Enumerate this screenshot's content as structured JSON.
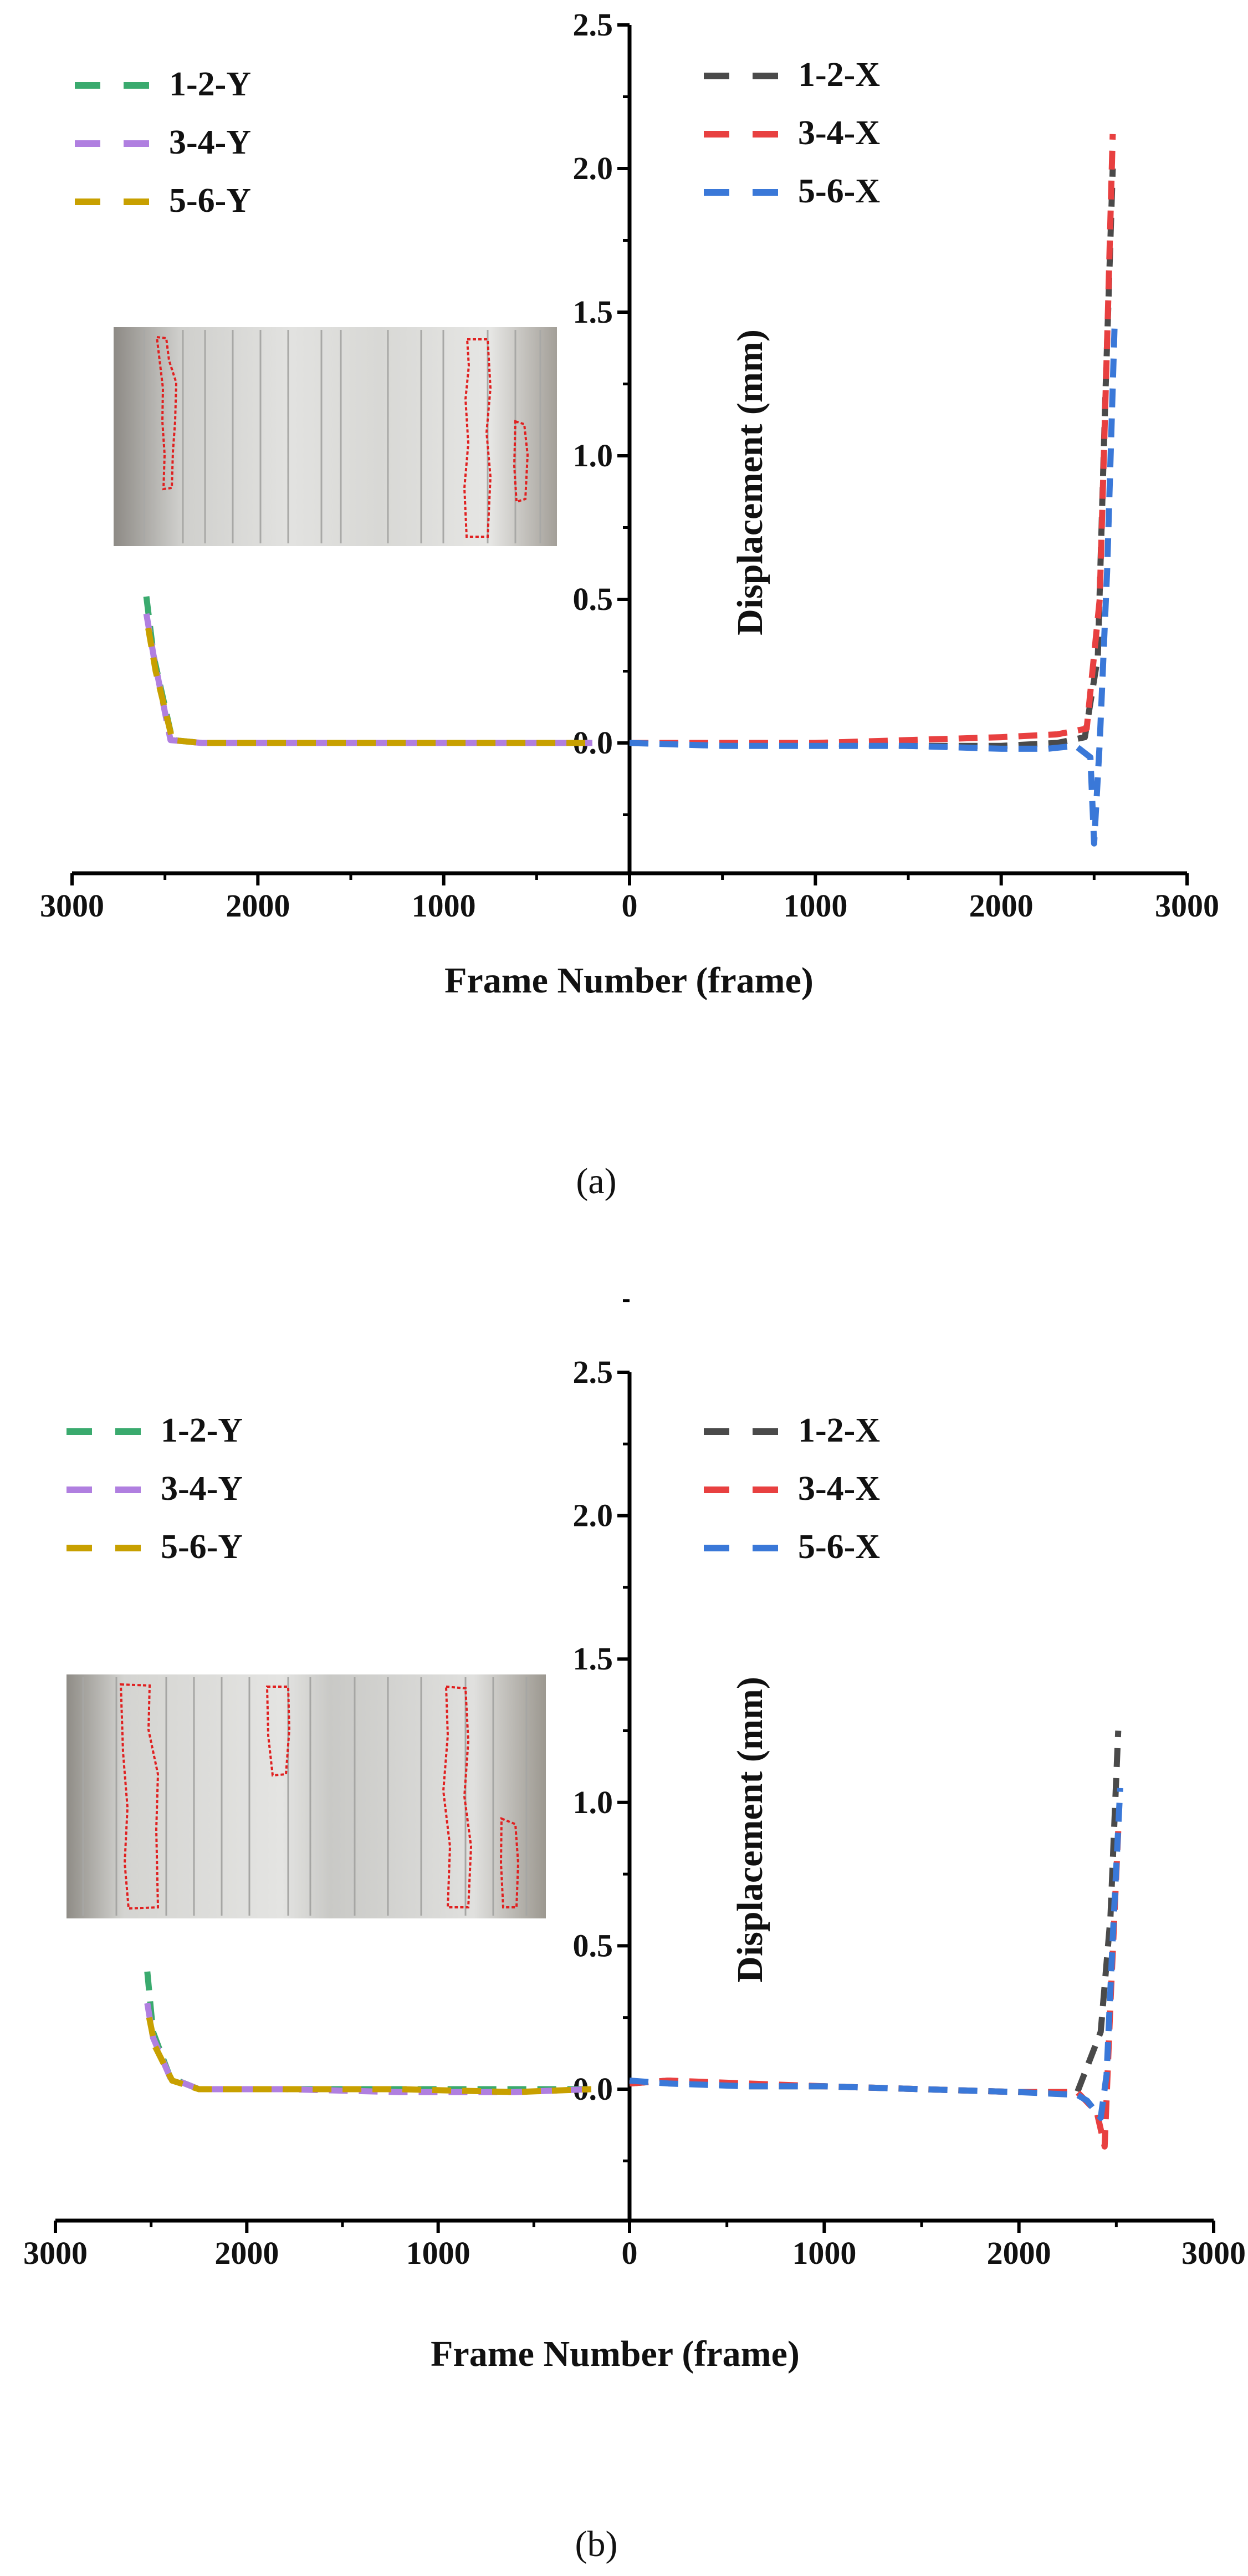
{
  "chart_data": [
    {
      "type": "line",
      "panel_label": "(a)",
      "xlabel": "Frame Number (frame)",
      "ylabel": "Displacement (mm)",
      "x_ticks": [
        "3000",
        "2000",
        "1000",
        "0",
        "1000",
        "2000",
        "3000"
      ],
      "y_ticks": [
        "0.0",
        "0.5",
        "1.0",
        "1.5",
        "2.0",
        "2.5"
      ],
      "xlim": [
        -3000,
        3000
      ],
      "ylim": [
        -0.5,
        2.5
      ],
      "x_axis": "mirrored about 0 (left half: Y-direction series, right half: X-direction series)",
      "legend_left": [
        "1-2-Y",
        "3-4-Y",
        "5-6-Y"
      ],
      "legend_right": [
        "1-2-X",
        "3-4-X",
        "5-6-X"
      ],
      "series": [
        {
          "name": "1-2-Y",
          "color": "#3aaa6e",
          "side": "left",
          "x": [
            2600,
            2560,
            2460,
            2300,
            1800,
            1200,
            600,
            200
          ],
          "y": [
            0.51,
            0.3,
            0.01,
            0.0,
            0.0,
            0.0,
            0.0,
            0.0
          ]
        },
        {
          "name": "3-4-Y",
          "color": "#b07fe0",
          "side": "left",
          "x": [
            2600,
            2560,
            2470,
            2300,
            1800,
            1200,
            600,
            200
          ],
          "y": [
            0.45,
            0.3,
            0.01,
            0.0,
            0.0,
            0.0,
            0.0,
            0.0
          ]
        },
        {
          "name": "5-6-Y",
          "color": "#c8a000",
          "side": "left",
          "x": [
            2590,
            2550,
            2460,
            2300,
            1800,
            1200,
            600,
            200
          ],
          "y": [
            0.4,
            0.25,
            0.01,
            0.0,
            0.0,
            0.0,
            0.0,
            0.0
          ]
        },
        {
          "name": "1-2-X",
          "color": "#4a4a4a",
          "side": "right",
          "x": [
            0,
            500,
            1000,
            1500,
            2000,
            2300,
            2450,
            2520,
            2560,
            2600
          ],
          "y": [
            0.0,
            0.0,
            0.0,
            -0.01,
            -0.01,
            0.0,
            0.02,
            0.3,
            1.2,
            2.0
          ]
        },
        {
          "name": "3-4-X",
          "color": "#e84040",
          "side": "right",
          "x": [
            0,
            500,
            1000,
            1500,
            2000,
            2300,
            2460,
            2530,
            2570,
            2600
          ],
          "y": [
            0.0,
            0.0,
            0.0,
            0.01,
            0.02,
            0.03,
            0.05,
            0.5,
            1.4,
            2.12
          ]
        },
        {
          "name": "5-6-X",
          "color": "#3a78d8",
          "side": "right",
          "x": [
            0,
            500,
            1000,
            1500,
            2000,
            2250,
            2400,
            2480,
            2500,
            2530,
            2570,
            2610
          ],
          "y": [
            0.0,
            -0.01,
            -0.01,
            -0.01,
            -0.02,
            -0.02,
            -0.01,
            -0.05,
            -0.35,
            0.0,
            0.6,
            1.45
          ]
        }
      ]
    },
    {
      "type": "line",
      "panel_label": "(b)",
      "xlabel": "Frame Number (frame)",
      "ylabel": "Displacement (mm)",
      "x_ticks": [
        "3000",
        "2000",
        "1000",
        "0",
        "1000",
        "2000",
        "3000"
      ],
      "y_ticks": [
        "0.0",
        "0.5",
        "1.0",
        "1.5",
        "2.0",
        "2.5"
      ],
      "xlim": [
        -3000,
        3000
      ],
      "ylim": [
        -0.5,
        2.5
      ],
      "x_axis": "mirrored about 0 (left half: Y-direction series, right half: X-direction series)",
      "legend_left": [
        "1-2-Y",
        "3-4-Y",
        "5-6-Y"
      ],
      "legend_right": [
        "1-2-X",
        "3-4-X",
        "5-6-X"
      ],
      "series": [
        {
          "name": "1-2-Y",
          "color": "#3aaa6e",
          "side": "left",
          "x": [
            2520,
            2490,
            2400,
            2250,
            1800,
            1200,
            600,
            200
          ],
          "y": [
            0.41,
            0.2,
            0.04,
            0.0,
            0.0,
            0.0,
            0.0,
            0.0
          ]
        },
        {
          "name": "3-4-Y",
          "color": "#b07fe0",
          "side": "left",
          "x": [
            2520,
            2490,
            2400,
            2250,
            1800,
            1200,
            600,
            200
          ],
          "y": [
            0.3,
            0.18,
            0.04,
            0.0,
            0.0,
            -0.01,
            -0.01,
            0.0
          ]
        },
        {
          "name": "5-6-Y",
          "color": "#c8a000",
          "side": "left",
          "x": [
            2510,
            2480,
            2390,
            2250,
            1800,
            1200,
            600,
            200
          ],
          "y": [
            0.25,
            0.15,
            0.03,
            0.0,
            0.0,
            0.0,
            -0.01,
            0.0
          ]
        },
        {
          "name": "1-2-X",
          "color": "#4a4a4a",
          "side": "right",
          "x": [
            0,
            200,
            600,
            1000,
            1500,
            2000,
            2300,
            2420,
            2470,
            2510
          ],
          "y": [
            0.02,
            0.03,
            0.01,
            0.01,
            0.0,
            -0.01,
            -0.01,
            0.2,
            0.6,
            1.25
          ]
        },
        {
          "name": "3-4-X",
          "color": "#e84040",
          "side": "right",
          "x": [
            0,
            200,
            600,
            1000,
            1500,
            2000,
            2300,
            2400,
            2440,
            2470,
            2510
          ],
          "y": [
            0.02,
            0.03,
            0.02,
            0.01,
            0.0,
            -0.01,
            -0.01,
            -0.08,
            -0.2,
            0.3,
            0.9
          ]
        },
        {
          "name": "5-6-X",
          "color": "#3a78d8",
          "side": "right",
          "x": [
            0,
            200,
            600,
            1000,
            1500,
            2000,
            2300,
            2350,
            2420,
            2450,
            2480,
            2520
          ],
          "y": [
            0.03,
            0.02,
            0.01,
            0.01,
            0.0,
            -0.01,
            -0.02,
            -0.04,
            -0.1,
            0.05,
            0.5,
            1.05
          ]
        }
      ]
    }
  ]
}
